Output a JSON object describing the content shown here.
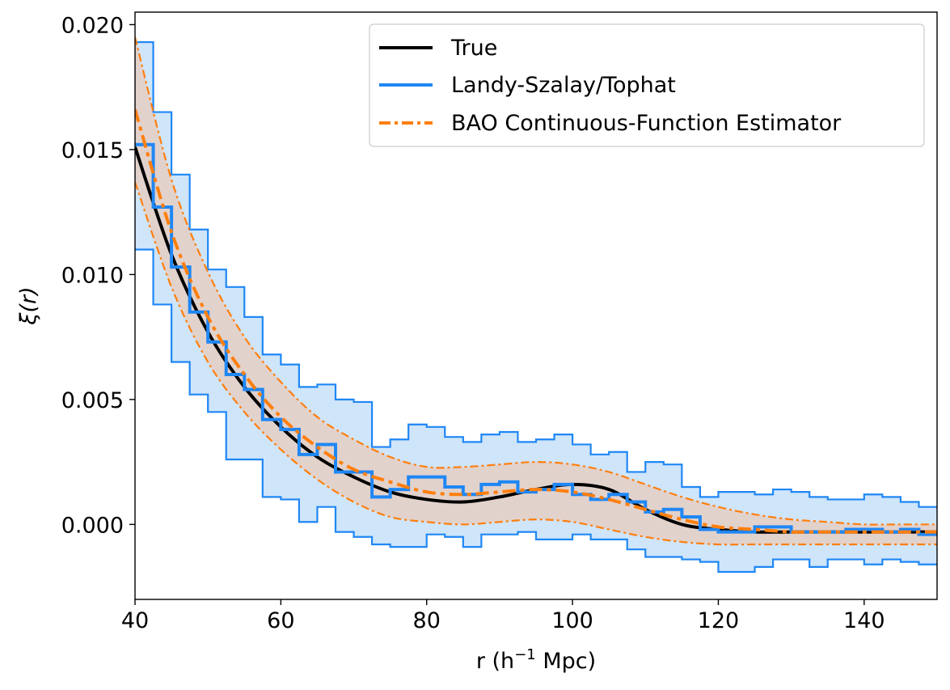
{
  "chart_data": {
    "type": "line",
    "xlabel": "r (h",
    "xlabel_sup": "−1",
    "xlabel_tail": " Mpc)",
    "ylabel": "ξ(r)",
    "xlim": [
      40,
      150
    ],
    "ylim": [
      -0.003,
      0.0205
    ],
    "xticks": [
      40,
      60,
      80,
      100,
      120,
      140
    ],
    "xtick_labels": [
      "40",
      "60",
      "80",
      "100",
      "120",
      "140"
    ],
    "yticks": [
      0.0,
      0.005,
      0.01,
      0.015,
      0.02
    ],
    "ytick_labels": [
      "0.000",
      "0.005",
      "0.010",
      "0.015",
      "0.020"
    ],
    "grid": false,
    "legend_position": "top-right",
    "colors": {
      "true": "#000000",
      "tophat": "#1f87f5",
      "tophat_fill": "#cfe5fa",
      "bao": "#ff7f0e",
      "bao_fill": "#e2d2cc"
    },
    "series": [
      {
        "name": "True",
        "style": "solid",
        "x": [
          40,
          45,
          50,
          55,
          60,
          65,
          70,
          75,
          80,
          85,
          90,
          95,
          100,
          105,
          110,
          115,
          120,
          125,
          130,
          135,
          140,
          145,
          150
        ],
        "y": [
          0.0151,
          0.0108,
          0.0077,
          0.0055,
          0.0039,
          0.0027,
          0.0019,
          0.0013,
          0.001,
          0.0009,
          0.0011,
          0.0014,
          0.0016,
          0.0014,
          0.0006,
          0.0,
          -0.0002,
          -0.0003,
          -0.0003,
          -0.0003,
          -0.0003,
          -0.0003,
          -0.0003
        ]
      },
      {
        "name": "Landy-Szalay/Tophat",
        "style": "step",
        "bin_width": 2.5,
        "x": [
          40,
          42.5,
          45,
          47.5,
          50,
          52.5,
          55,
          57.5,
          60,
          62.5,
          65,
          67.5,
          70,
          72.5,
          75,
          77.5,
          80,
          82.5,
          85,
          87.5,
          90,
          92.5,
          95,
          97.5,
          100,
          102.5,
          105,
          107.5,
          110,
          112.5,
          115,
          117.5,
          120,
          122.5,
          125,
          127.5,
          130,
          132.5,
          135,
          137.5,
          140,
          142.5,
          145,
          147.5
        ],
        "y": [
          0.0152,
          0.0127,
          0.0103,
          0.0085,
          0.0073,
          0.006,
          0.0054,
          0.0042,
          0.0038,
          0.0028,
          0.0032,
          0.0021,
          0.0021,
          0.0011,
          0.0014,
          0.0019,
          0.0019,
          0.0015,
          0.0012,
          0.0016,
          0.0017,
          0.0013,
          0.0014,
          0.0016,
          0.0012,
          0.001,
          0.0012,
          0.0009,
          0.0005,
          0.0006,
          0.0003,
          -0.0002,
          -0.0003,
          -0.0003,
          -0.0001,
          -0.0001,
          -0.0003,
          -0.0003,
          -0.0003,
          -0.0002,
          -0.0002,
          -0.0003,
          -0.0002,
          -0.0004
        ],
        "lower": [
          0.011,
          0.0088,
          0.0065,
          0.0052,
          0.0045,
          0.0026,
          0.0026,
          0.0011,
          0.001,
          0.0001,
          0.0007,
          -0.0003,
          -0.0005,
          -0.0008,
          -0.0009,
          -0.0009,
          -0.0004,
          -0.0005,
          -0.0009,
          -0.0004,
          -0.0004,
          -0.0003,
          -0.0006,
          -0.0006,
          -0.0004,
          -0.0006,
          -0.0006,
          -0.001,
          -0.0013,
          -0.0013,
          -0.0014,
          -0.0015,
          -0.0019,
          -0.0019,
          -0.0017,
          -0.0014,
          -0.0014,
          -0.0017,
          -0.0014,
          -0.0014,
          -0.0016,
          -0.0014,
          -0.0015,
          -0.0016
        ],
        "upper": [
          0.0193,
          0.0165,
          0.014,
          0.0118,
          0.0102,
          0.0095,
          0.0083,
          0.0068,
          0.0064,
          0.0055,
          0.0056,
          0.005,
          0.0049,
          0.0031,
          0.0034,
          0.004,
          0.0039,
          0.0035,
          0.0033,
          0.0036,
          0.0037,
          0.0033,
          0.0034,
          0.0036,
          0.0032,
          0.0028,
          0.0029,
          0.0021,
          0.0025,
          0.0024,
          0.0015,
          0.0011,
          0.0013,
          0.0013,
          0.0012,
          0.0014,
          0.0013,
          0.0011,
          0.001,
          0.001,
          0.0012,
          0.0011,
          0.0009,
          0.0007
        ]
      },
      {
        "name": "BAO Continuous-Function Estimator",
        "style": "dashdot",
        "x": [
          40,
          45,
          50,
          55,
          60,
          65,
          70,
          75,
          80,
          85,
          90,
          95,
          100,
          105,
          110,
          115,
          120,
          125,
          130,
          135,
          140,
          145,
          150
        ],
        "y": [
          0.0166,
          0.0117,
          0.0083,
          0.006,
          0.0043,
          0.0031,
          0.0022,
          0.0017,
          0.0013,
          0.0012,
          0.0013,
          0.0014,
          0.0013,
          0.001,
          0.0006,
          0.0002,
          -0.0001,
          -0.0002,
          -0.0003,
          -0.0003,
          -0.0003,
          -0.0003,
          -0.0003
        ],
        "lower": [
          0.0137,
          0.0095,
          0.0065,
          0.0045,
          0.003,
          0.0018,
          0.0009,
          0.0003,
          0.0001,
          0.0,
          0.0001,
          0.0002,
          0.0001,
          -0.0002,
          -0.0005,
          -0.0007,
          -0.0008,
          -0.0008,
          -0.0008,
          -0.0008,
          -0.0008,
          -0.0008,
          -0.0008
        ],
        "upper": [
          0.0195,
          0.0138,
          0.0101,
          0.0075,
          0.0057,
          0.0043,
          0.0034,
          0.0027,
          0.0023,
          0.0023,
          0.0024,
          0.0025,
          0.0024,
          0.0021,
          0.0016,
          0.0011,
          0.0007,
          0.0004,
          0.0002,
          0.0001,
          0.0,
          0.0,
          0.0
        ]
      }
    ]
  }
}
